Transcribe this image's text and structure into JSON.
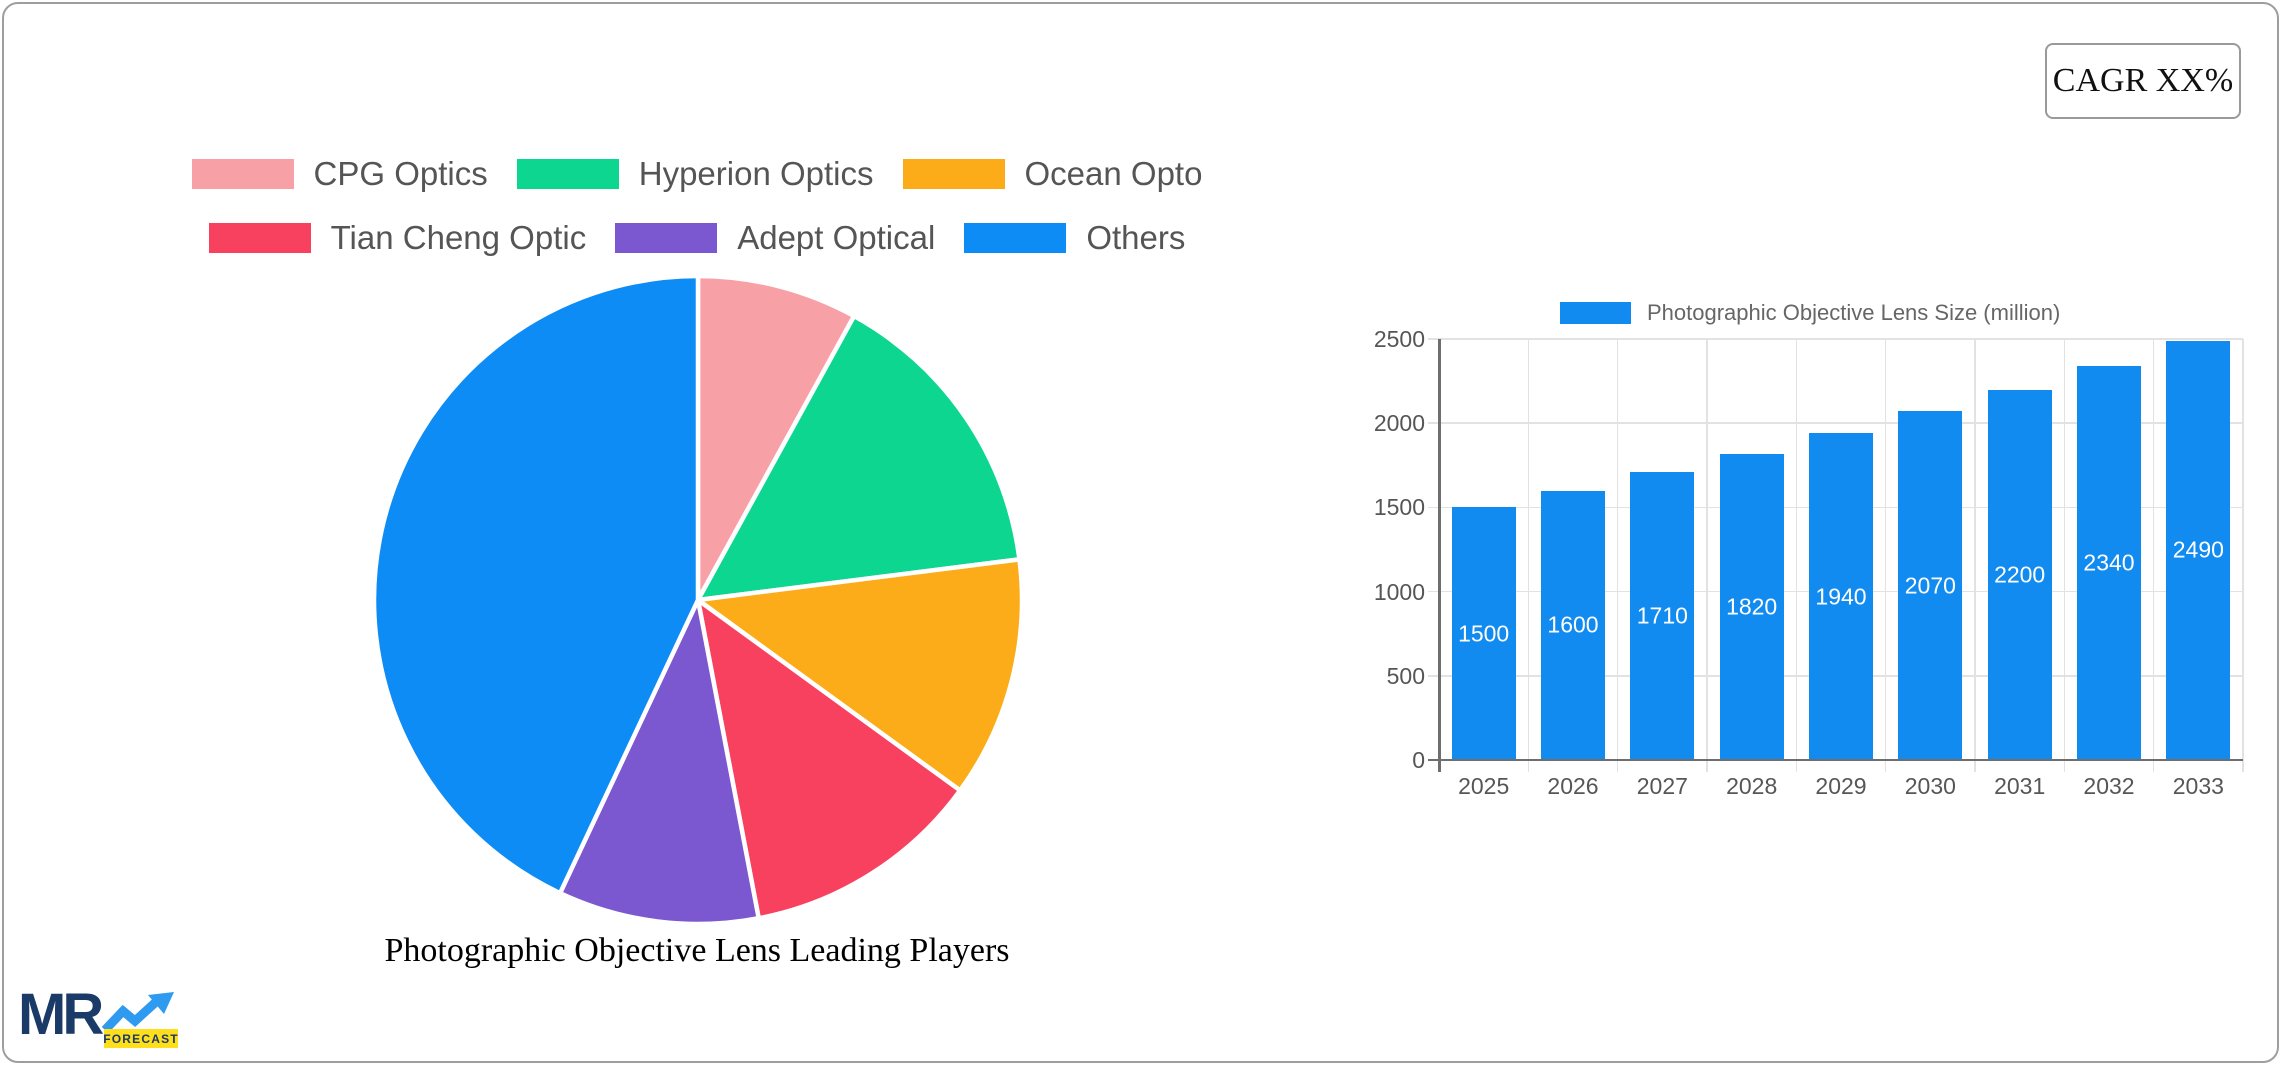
{
  "card": {
    "cagr_label": "CAGR XX%"
  },
  "logo": {
    "mr": "MR",
    "forecast": "FORECAST",
    "navy": "#1A3A68",
    "arrow_blue": "#2E9AF0",
    "yellow": "#FFDF1B"
  },
  "chart_data": [
    {
      "type": "pie",
      "title": "Photographic Objective Lens Leading Players",
      "legend_position": "top",
      "legend_rows": [
        [
          0,
          1,
          2
        ],
        [
          3,
          4,
          5
        ]
      ],
      "slices": [
        {
          "label": "CPG Optics",
          "value": 8,
          "color": "#F7A1A7"
        },
        {
          "label": "Hyperion Optics",
          "value": 15,
          "color": "#0CD690"
        },
        {
          "label": "Ocean Opto",
          "value": 12,
          "color": "#FBAC18"
        },
        {
          "label": "Tian Cheng Optic",
          "value": 12,
          "color": "#F8415F"
        },
        {
          "label": "Adept Optical",
          "value": 10,
          "color": "#7B57D0"
        },
        {
          "label": "Others",
          "value": 43,
          "color": "#0E8CF5"
        }
      ],
      "values_note": "slice percentages estimated from arc angles"
    },
    {
      "type": "bar",
      "series_label": "Photographic Objective Lens Size (million)",
      "bar_color": "#128BF0",
      "categories": [
        "2025",
        "2026",
        "2027",
        "2028",
        "2029",
        "2030",
        "2031",
        "2032",
        "2033"
      ],
      "values": [
        1500,
        1600,
        1710,
        1820,
        1940,
        2070,
        2200,
        2340,
        2490
      ],
      "ylim": [
        0,
        2500
      ],
      "y_ticks": [
        0,
        500,
        1000,
        1500,
        2000,
        2500
      ],
      "grid": true,
      "legend_position": "top",
      "data_labels": true
    }
  ]
}
